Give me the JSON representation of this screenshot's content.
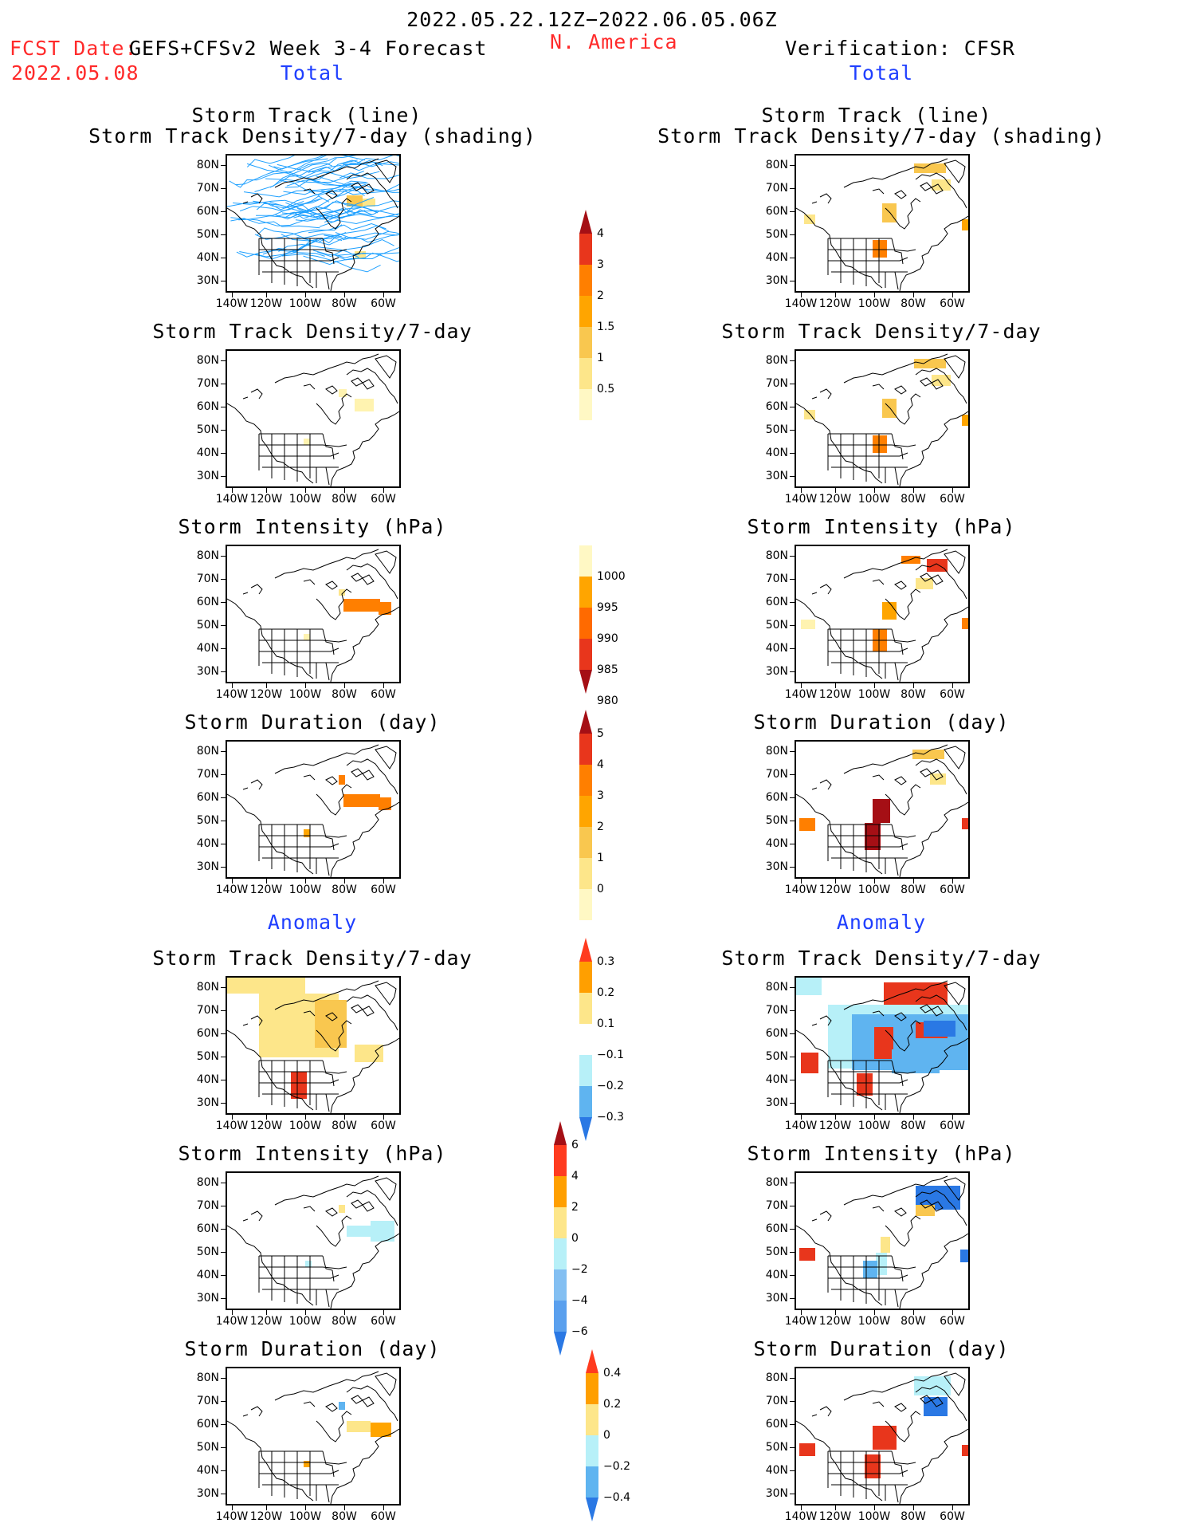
{
  "header": {
    "period": "2022.05.22.12Z−2022.06.05.06Z",
    "fcst_label": "FCST Date:",
    "model": "GEFS+CFSv2 Week 3-4 Forecast",
    "fcst_date": "2022.05.08",
    "region": "N. America",
    "verification": "Verification: CFSR",
    "left_section": "Total",
    "right_section": "Total",
    "anomaly_left": "Anomaly",
    "anomaly_right": "Anomaly"
  },
  "axes": {
    "lat_labels": [
      "80N",
      "70N",
      "60N",
      "50N",
      "40N",
      "30N"
    ],
    "lon_labels": [
      "140W",
      "120W",
      "100W",
      "80W",
      "60W"
    ]
  },
  "panels": {
    "r1": {
      "title1": "Storm Track (line)",
      "title2": "Storm Track Density/7-day (shading)"
    },
    "r2": {
      "title": "Storm Track Density/7-day"
    },
    "r3": {
      "title": "Storm Intensity (hPa)"
    },
    "r4": {
      "title": "Storm Duration (day)"
    },
    "r5": {
      "title": "Storm Track Density/7-day"
    },
    "r6": {
      "title": "Storm Intensity (hPa)"
    },
    "r7": {
      "title": "Storm Duration (day)"
    }
  },
  "colorbars": {
    "density": {
      "labels": [
        "4",
        "3",
        "2",
        "1.5",
        "1",
        "0.5"
      ],
      "colors": [
        "#a50f15",
        "#e8361c",
        "#ff7f00",
        "#ffa500",
        "#f9c74f",
        "#fde68a",
        "#fff8c4"
      ]
    },
    "intensity": {
      "labels": [
        "1000",
        "995",
        "990",
        "985",
        "980"
      ],
      "colors": [
        "#fff8c4",
        "#ffa500",
        "#ff6a00",
        "#e8361c",
        "#a50f15"
      ]
    },
    "duration": {
      "labels": [
        "5",
        "4",
        "3",
        "2",
        "1",
        "0"
      ],
      "colors": [
        "#a50f15",
        "#e8361c",
        "#ff7f00",
        "#ffa500",
        "#f9c74f",
        "#fde68a",
        "#fff8c4"
      ]
    },
    "anom_density": {
      "labels": [
        "0.3",
        "0.2",
        "0.1",
        "−0.1",
        "−0.2",
        "−0.3"
      ],
      "colors": [
        "#ff3b1f",
        "#ff9f00",
        "#fde68a",
        "#ffffff",
        "#b7f0f8",
        "#5fb4f0",
        "#2a78e4"
      ]
    },
    "anom_intensity": {
      "labels": [
        "6",
        "4",
        "2",
        "0",
        "−2",
        "−4",
        "−6"
      ],
      "colors": [
        "#a50f15",
        "#ff3b1f",
        "#ff9f00",
        "#fde68a",
        "#b7f0f8",
        "#83bff2",
        "#5aa0ee",
        "#2a78e4"
      ]
    },
    "anom_duration": {
      "labels": [
        "0.4",
        "0.2",
        "0",
        "−0.2",
        "−0.4"
      ],
      "colors": [
        "#ff3b1f",
        "#ff9f00",
        "#fde68a",
        "#b7f0f8",
        "#5fb4f0",
        "#2a78e4"
      ]
    }
  },
  "colors": {
    "title_red": "#ff2a2a",
    "section_blue": "#1f3fff",
    "track_line": "#1ea0ff"
  }
}
